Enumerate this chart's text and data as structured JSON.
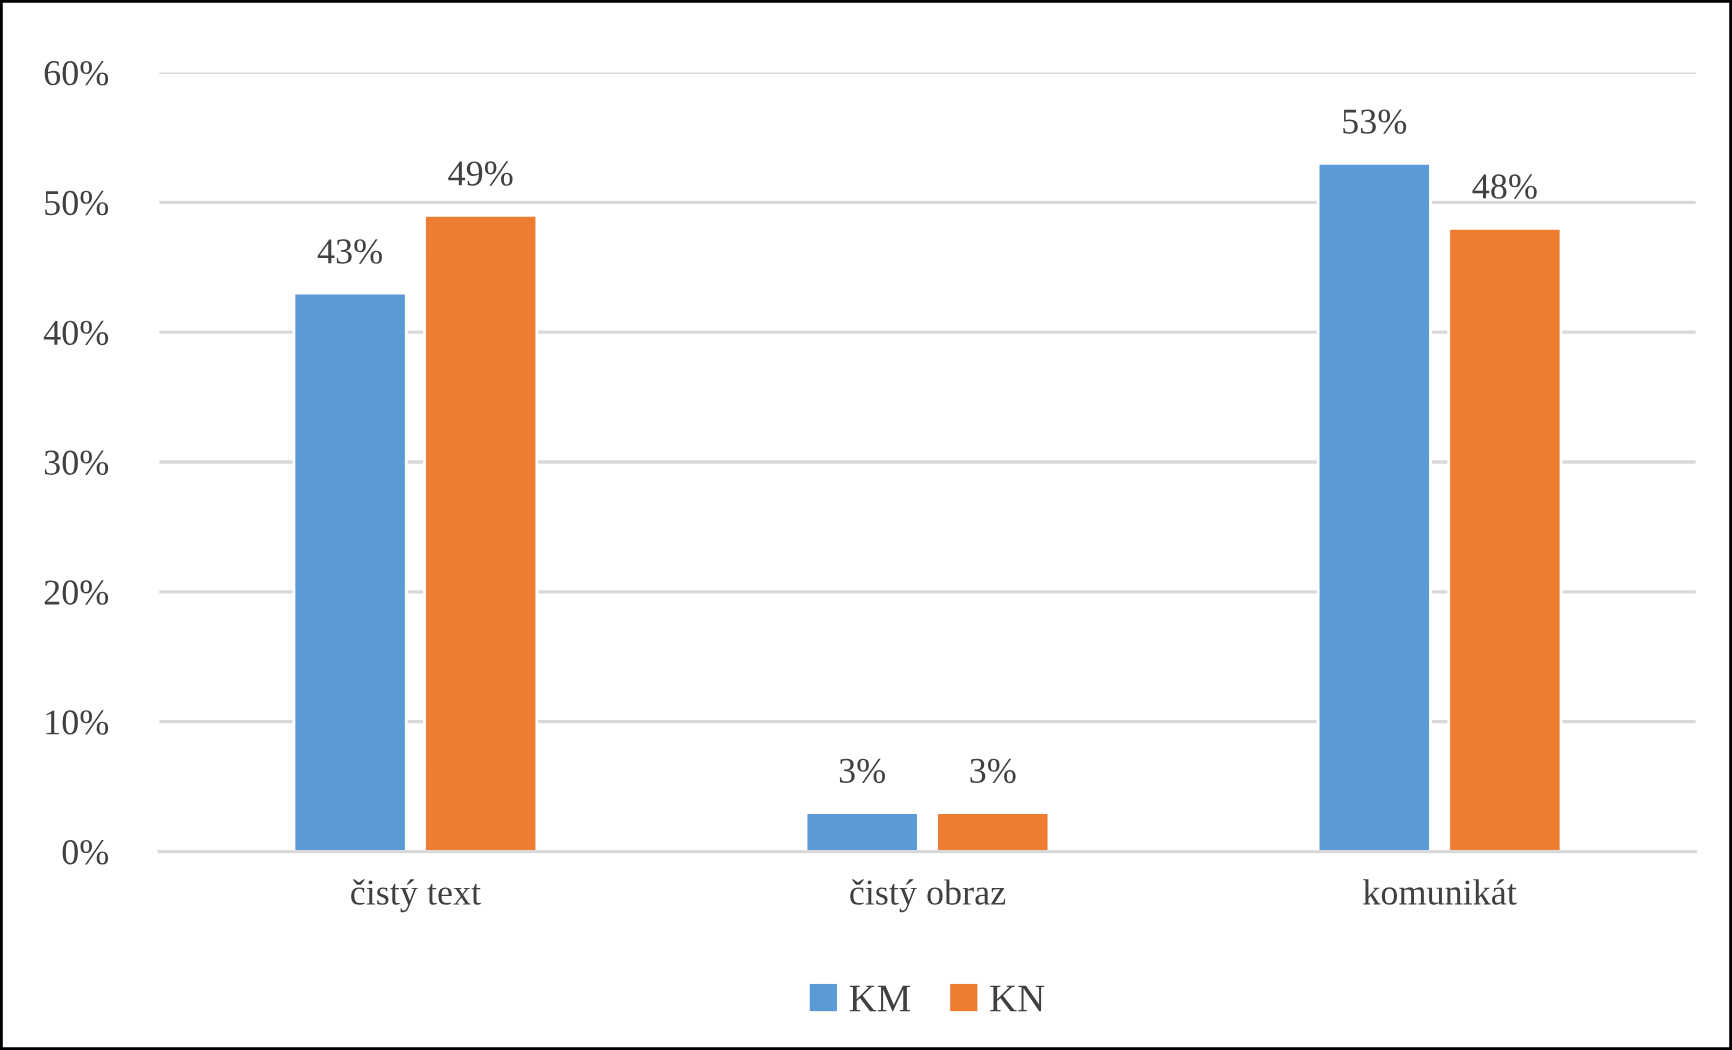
{
  "chart_data": {
    "type": "bar",
    "categories": [
      "čistý text",
      "čistý obraz",
      "komunikát"
    ],
    "series": [
      {
        "name": "KM",
        "color": "#5b9bd5",
        "values": [
          43,
          3,
          53
        ],
        "value_labels": [
          "43%",
          "3%",
          "53%"
        ]
      },
      {
        "name": "KN",
        "color": "#ed7d31",
        "values": [
          49,
          3,
          48
        ],
        "value_labels": [
          "49%",
          "3%",
          "48%"
        ]
      }
    ],
    "ylim": [
      0,
      60
    ],
    "yticks": [
      {
        "value": 0,
        "label": "0%"
      },
      {
        "value": 10,
        "label": "10%"
      },
      {
        "value": 20,
        "label": "20%"
      },
      {
        "value": 30,
        "label": "30%"
      },
      {
        "value": 40,
        "label": "40%"
      },
      {
        "value": 50,
        "label": "50%"
      },
      {
        "value": 60,
        "label": "60%"
      }
    ],
    "grid": "y",
    "legend": "bottom"
  }
}
